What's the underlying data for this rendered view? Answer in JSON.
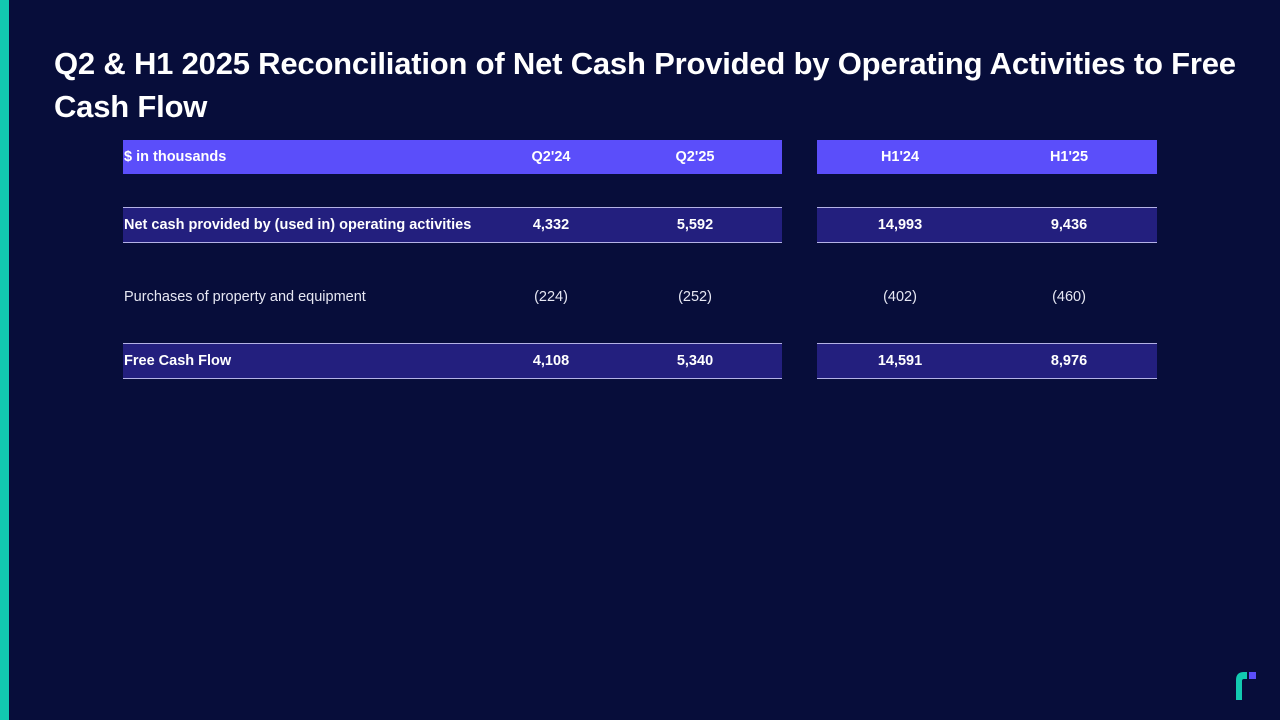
{
  "slide": {
    "title": "Q2 & H1 2025 Reconciliation of Net Cash Provided by Operating Activities to Free Cash Flow"
  },
  "colors": {
    "background": "#070d3a",
    "accent_bar": "#12c9b0",
    "header_row": "#5b4efa",
    "subtotal_row": "#231f7e",
    "logo": "#12c9b0",
    "logo_secondary": "#5b4efa"
  },
  "table": {
    "unit_label": "$ in thousands",
    "quarter_columns": [
      "Q2'24",
      "Q2'25"
    ],
    "half_year_columns": [
      "H1'24",
      "H1'25"
    ],
    "rows": [
      {
        "label": "Net cash provided by (used in) operating activities",
        "quarter_values": [
          "4,332",
          "5,592"
        ],
        "half_year_values": [
          "14,993",
          "9,436"
        ]
      },
      {
        "label": "Purchases of property and equipment",
        "quarter_values": [
          "(224)",
          "(252)"
        ],
        "half_year_values": [
          "(402)",
          "(460)"
        ]
      },
      {
        "label": "Free Cash Flow",
        "quarter_values": [
          "4,108",
          "5,340"
        ],
        "half_year_values": [
          "14,591",
          "8,976"
        ]
      }
    ]
  },
  "logo_icon": "company-logo-icon"
}
